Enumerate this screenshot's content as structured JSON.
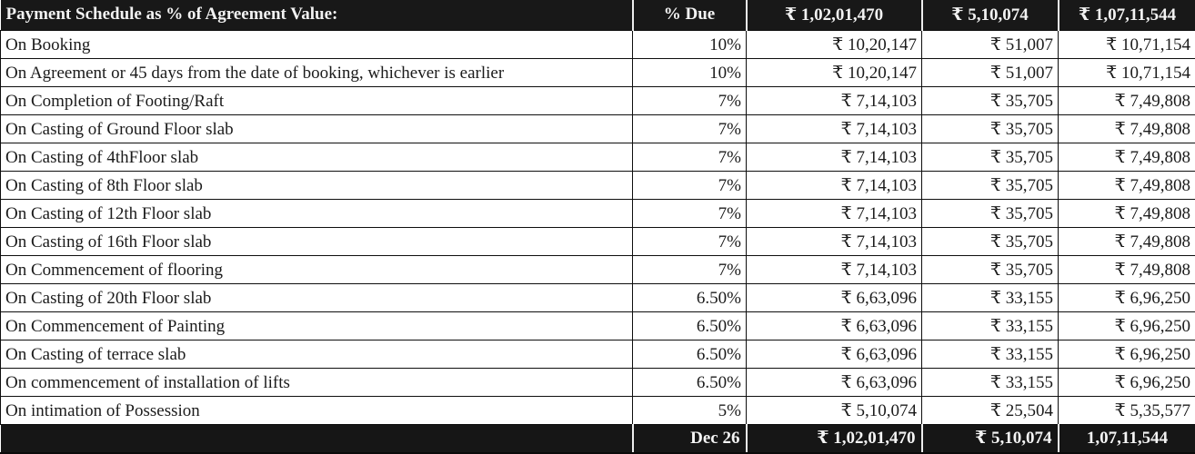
{
  "header": {
    "title": "Payment Schedule as % of Agreement Value:",
    "due": "% Due",
    "v1": "₹ 1,02,01,470",
    "v2": "₹ 5,10,074",
    "v3": "₹ 1,07,11,544"
  },
  "rows": [
    {
      "label": "On Booking",
      "due": "10%",
      "v1": "₹ 10,20,147",
      "v2": "₹ 51,007",
      "v3": "₹ 10,71,154"
    },
    {
      "label": "On Agreement or 45 days from the date of booking, whichever is earlier",
      "due": "10%",
      "v1": "₹ 10,20,147",
      "v2": "₹ 51,007",
      "v3": "₹ 10,71,154"
    },
    {
      "label": "On Completion of Footing/Raft",
      "due": "7%",
      "v1": "₹ 7,14,103",
      "v2": "₹ 35,705",
      "v3": "₹ 7,49,808"
    },
    {
      "label": "On Casting of Ground Floor slab",
      "due": "7%",
      "v1": "₹ 7,14,103",
      "v2": "₹ 35,705",
      "v3": "₹ 7,49,808"
    },
    {
      "label": "On Casting of 4thFloor slab",
      "due": "7%",
      "v1": "₹ 7,14,103",
      "v2": "₹ 35,705",
      "v3": "₹ 7,49,808"
    },
    {
      "label": "On Casting of 8th Floor slab",
      "due": "7%",
      "v1": "₹ 7,14,103",
      "v2": "₹ 35,705",
      "v3": "₹ 7,49,808"
    },
    {
      "label": "On Casting of 12th Floor slab",
      "due": "7%",
      "v1": "₹ 7,14,103",
      "v2": "₹ 35,705",
      "v3": "₹ 7,49,808"
    },
    {
      "label": "On Casting of 16th Floor slab",
      "due": "7%",
      "v1": "₹ 7,14,103",
      "v2": "₹ 35,705",
      "v3": "₹ 7,49,808"
    },
    {
      "label": "On Commencement of flooring",
      "due": "7%",
      "v1": "₹ 7,14,103",
      "v2": "₹ 35,705",
      "v3": "₹ 7,49,808"
    },
    {
      "label": "On Casting of 20th Floor slab",
      "due": "6.50%",
      "v1": "₹ 6,63,096",
      "v2": "₹ 33,155",
      "v3": "₹ 6,96,250"
    },
    {
      "label": "On Commencement of Painting",
      "due": "6.50%",
      "v1": "₹ 6,63,096",
      "v2": "₹ 33,155",
      "v3": "₹ 6,96,250"
    },
    {
      "label": "On Casting of terrace slab",
      "due": "6.50%",
      "v1": "₹ 6,63,096",
      "v2": "₹ 33,155",
      "v3": "₹ 6,96,250"
    },
    {
      "label": "On commencement of installation of lifts",
      "due": "6.50%",
      "v1": "₹ 6,63,096",
      "v2": "₹ 33,155",
      "v3": "₹ 6,96,250"
    },
    {
      "label": "On intimation of Possession",
      "due": "5%",
      "v1": "₹ 5,10,074",
      "v2": "₹ 25,504",
      "v3": "₹ 5,35,577"
    }
  ],
  "footer": {
    "label": "",
    "due": "Dec 26",
    "v1": "₹ 1,02,01,470",
    "v2": "₹ 5,10,074",
    "v3": "1,07,11,544"
  },
  "colors": {
    "header_bg": "#181818",
    "footer_bg": "#161616",
    "header_text": "#f2f2f2",
    "body_text": "#1b1b1b",
    "grid_line": "#0e0e0e",
    "header_separator": "#ededed",
    "row_bg": "#ffffff"
  }
}
